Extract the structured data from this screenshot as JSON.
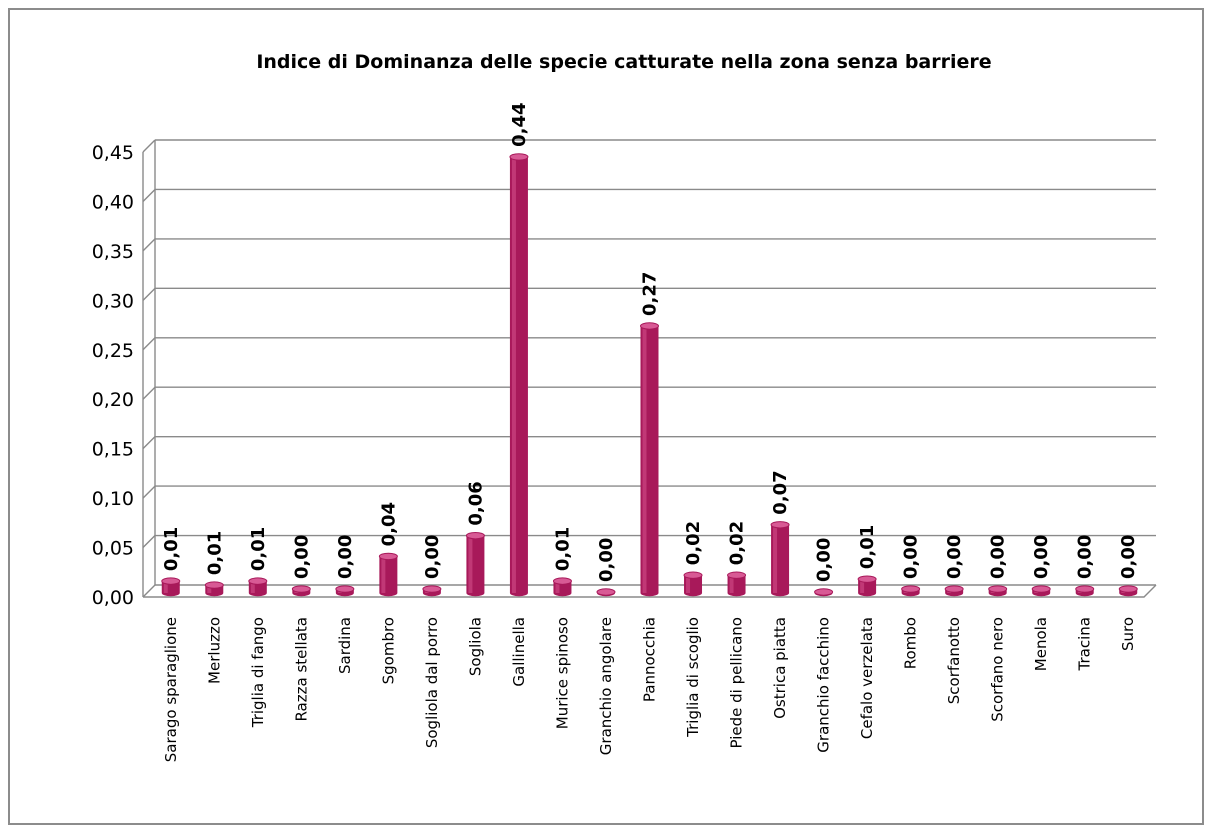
{
  "chart_data": {
    "type": "bar",
    "title": "Indice di Dominanza delle specie catturate nella zona senza barriere",
    "xlabel": "",
    "ylabel": "",
    "ylim": [
      0,
      0.45
    ],
    "y_ticks": [
      "0,00",
      "0,05",
      "0,10",
      "0,15",
      "0,20",
      "0,25",
      "0,30",
      "0,35",
      "0,40",
      "0,45"
    ],
    "grid": true,
    "legend": "none",
    "bar_color": "#a8195a",
    "categories": [
      "Sarago sparaglione",
      "Merluzzo",
      "Triglia di fango",
      "Razza stellata",
      "Sardina",
      "Sgombro",
      "Sogliola dal porro",
      "Sogliola",
      "Gallinella",
      "Murice spinoso",
      "Granchio angolare",
      "Pannocchia",
      "Triglia di scoglio",
      "Piede di pellicano",
      "Ostrica piatta",
      "Granchio facchino",
      "Cefalo verzelata",
      "Rombo",
      "Scorfanotto",
      "Scorfano nero",
      "Menola",
      "Tracina",
      "Suro"
    ],
    "values": [
      0.012,
      0.008,
      0.012,
      0.004,
      0.004,
      0.037,
      0.004,
      0.058,
      0.441,
      0.012,
      0.001,
      0.27,
      0.018,
      0.018,
      0.069,
      0.001,
      0.014,
      0.004,
      0.004,
      0.004,
      0.004,
      0.004,
      0.004
    ],
    "data_labels": [
      "0,01",
      "0,01",
      "0,01",
      "0,00",
      "0,00",
      "0,04",
      "0,00",
      "0,06",
      "0,44",
      "0,01",
      "0,00",
      "0,27",
      "0,02",
      "0,02",
      "0,07",
      "0,00",
      "0,01",
      "0,00",
      "0,00",
      "0,00",
      "0,00",
      "0,00",
      "0,00"
    ]
  }
}
